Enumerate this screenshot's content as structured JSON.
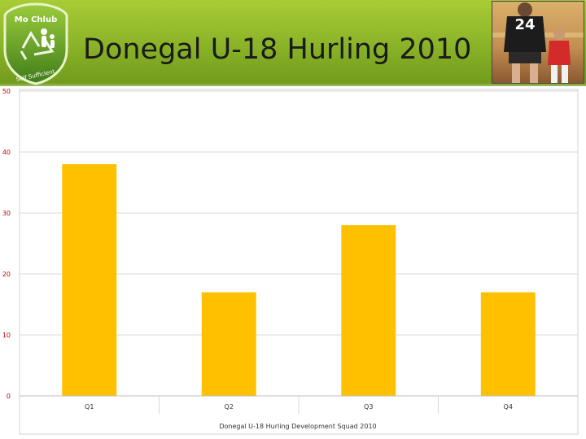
{
  "header": {
    "title": "Donegal U-18 Hurling 2010",
    "logo": {
      "top_text": "Mo Chlub",
      "bottom_text": "Self Sufficient"
    },
    "photo": {
      "jersey_number": "24"
    }
  },
  "colors": {
    "header_green": "#8fb72a",
    "bar": "#ffc000",
    "tick_text": "#c00000",
    "grid": "#d9d9d9"
  },
  "chart_data": {
    "type": "bar",
    "categories": [
      "Q1",
      "Q2",
      "Q3",
      "Q4"
    ],
    "values": [
      38,
      17,
      28,
      17
    ],
    "title": "",
    "xlabel": "Donegal U-18 Hurling Development Squad  2010",
    "ylabel": "",
    "ylim": [
      0,
      50
    ],
    "yticks": [
      0,
      10,
      20,
      30,
      40,
      50
    ],
    "grid": true,
    "legend": "none"
  }
}
